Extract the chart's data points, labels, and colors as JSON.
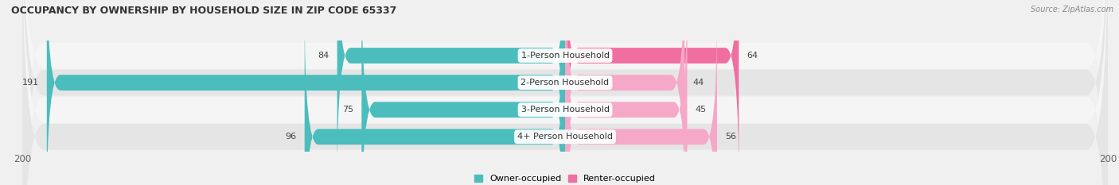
{
  "title": "OCCUPANCY BY OWNERSHIP BY HOUSEHOLD SIZE IN ZIP CODE 65337",
  "source": "Source: ZipAtlas.com",
  "categories": [
    "1-Person Household",
    "2-Person Household",
    "3-Person Household",
    "4+ Person Household"
  ],
  "owner_values": [
    84,
    191,
    75,
    96
  ],
  "renter_values": [
    64,
    44,
    45,
    56
  ],
  "owner_color": "#4BBDBD",
  "renter_color_bright": "#F06EA0",
  "renter_color_light": "#F5A8C8",
  "renter_colors": [
    "#F06EA0",
    "#F5A8C8",
    "#F5A8C8",
    "#F5A8C8"
  ],
  "axis_max": 200,
  "background_color": "#f0f0f0",
  "row_color_odd": "#fafafa",
  "row_color_even": "#e8e8e8",
  "legend_owner": "Owner-occupied",
  "legend_renter": "Renter-occupied",
  "title_fontsize": 9,
  "label_fontsize": 8,
  "tick_fontsize": 8.5,
  "value_fontsize": 8
}
